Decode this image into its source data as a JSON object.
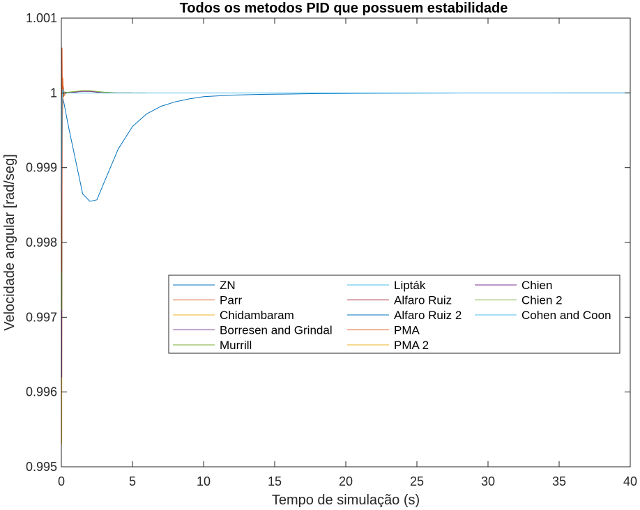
{
  "chart_data": {
    "type": "line",
    "title": "Todos os metodos PID que possuem estabilidade",
    "xlabel": "Tempo de simulação (s)",
    "ylabel": "Velocidade angular [rad/seg]",
    "xlim": [
      0,
      40
    ],
    "ylim": [
      0.995,
      1.001
    ],
    "xticks": [
      0,
      5,
      10,
      15,
      20,
      25,
      30,
      35,
      40
    ],
    "xtick_labels": [
      "0",
      "5",
      "10",
      "15",
      "20",
      "25",
      "30",
      "35",
      "40"
    ],
    "yticks": [
      0.995,
      0.996,
      0.997,
      0.998,
      0.999,
      1,
      1.001
    ],
    "ytick_labels": [
      "0.995",
      "0.996",
      "0.997",
      "0.998",
      "0.999",
      "1",
      "1.001"
    ],
    "grid": false,
    "legend_position": "center-right",
    "legend_columns": 3,
    "series": [
      {
        "name": "ZN",
        "color": "#0072BD",
        "x": [
          0,
          0.02,
          0.05,
          0.1,
          0.2,
          0.3
        ],
        "y": [
          1,
          0.9999,
          0.99985,
          0.99995,
          1.0,
          1.0
        ]
      },
      {
        "name": "Parr",
        "color": "#D95319",
        "x": [
          0,
          0.03,
          0.06,
          0.1,
          0.15,
          0.3,
          0.5
        ],
        "y": [
          1,
          1.0005,
          0.9995,
          1.0002,
          0.99995,
          1.0,
          1.0
        ]
      },
      {
        "name": "Chidambaram",
        "color": "#EDB120",
        "x": [
          0,
          0.03,
          0.06,
          0.1,
          0.2,
          0.5
        ],
        "y": [
          1,
          0.9953,
          1.0002,
          0.99995,
          1.0,
          1.0
        ]
      },
      {
        "name": "Borresen and Grindal",
        "color": "#7E2F8E",
        "x": [
          0,
          0.03,
          0.06,
          0.1,
          0.2,
          0.5
        ],
        "y": [
          1,
          0.9962,
          1.0001,
          0.99995,
          1.0,
          1.0
        ]
      },
      {
        "name": "Murrill",
        "color": "#77AC30",
        "x": [
          0,
          0.03,
          0.06,
          0.1,
          0.2,
          0.5
        ],
        "y": [
          1,
          0.9971,
          1.0001,
          0.99995,
          1.0,
          1.0
        ]
      },
      {
        "name": "Lipták",
        "color": "#4DBEEE",
        "x": [
          0,
          0.03,
          0.06,
          0.1,
          0.2,
          0.5
        ],
        "y": [
          1,
          0.9976,
          1.00005,
          0.99998,
          1.0,
          1.0
        ]
      },
      {
        "name": "Alfaro Ruiz",
        "color": "#A2142F",
        "x": [
          0,
          0.03,
          0.06,
          0.1,
          0.2,
          0.5
        ],
        "y": [
          1,
          0.9976,
          1.00005,
          0.99998,
          1.0,
          1.0
        ]
      },
      {
        "name": "Alfaro Ruiz 2",
        "color": "#0072BD",
        "x": [
          0,
          0.2,
          0.5,
          1,
          1.5,
          2,
          2.5,
          3,
          4,
          5,
          6,
          7,
          8,
          9,
          10,
          12,
          14,
          16,
          18,
          20,
          22,
          24,
          26,
          28,
          30,
          32,
          34,
          36,
          38,
          40
        ],
        "y": [
          1,
          0.99985,
          0.99955,
          0.9991,
          0.99865,
          0.99855,
          0.99857,
          0.9988,
          0.99925,
          0.99955,
          0.99972,
          0.99982,
          0.99988,
          0.99992,
          0.99995,
          0.99997,
          0.99998,
          0.999985,
          0.99999,
          0.999993,
          0.999995,
          0.999996,
          0.999997,
          0.999998,
          0.999998,
          0.999999,
          0.999999,
          1.0,
          1.0,
          1.0
        ]
      },
      {
        "name": "PMA",
        "color": "#D95319",
        "x": [
          0,
          0.03,
          0.05,
          0.08,
          0.12,
          0.2,
          0.4
        ],
        "y": [
          1,
          0.9976,
          1.0006,
          0.9997,
          1.0001,
          1.0,
          1.0
        ]
      },
      {
        "name": "PMA 2",
        "color": "#EDB120",
        "x": [
          0,
          0.5,
          1,
          1.5,
          2,
          2.5,
          3,
          4,
          5
        ],
        "y": [
          1,
          1.0,
          1.00002,
          1.00003,
          1.00002,
          1.00001,
          1.0,
          1.0,
          1.0
        ]
      },
      {
        "name": "Chien",
        "color": "#7E2F8E",
        "x": [
          0,
          0.5,
          1,
          1.5,
          2,
          2.5,
          3,
          4,
          5
        ],
        "y": [
          1,
          1.0,
          1.00001,
          1.00002,
          1.00002,
          1.00001,
          1.0,
          1.0,
          1.0
        ]
      },
      {
        "name": "Chien 2",
        "color": "#77AC30",
        "x": [
          0,
          0.5,
          1,
          1.5,
          2,
          2.5,
          3,
          4,
          5,
          6
        ],
        "y": [
          1,
          1.00001,
          1.00002,
          1.00003,
          1.00003,
          1.00002,
          1.00001,
          1.0,
          1.0,
          1.0
        ]
      },
      {
        "name": "Cohen and Coon",
        "color": "#4DBEEE",
        "x": [
          0,
          0.05,
          0.1,
          0.2,
          0.5,
          1,
          40
        ],
        "y": [
          0.9983,
          0.9999,
          1.00005,
          1.0,
          1.0,
          1.0,
          1.0
        ]
      }
    ]
  }
}
